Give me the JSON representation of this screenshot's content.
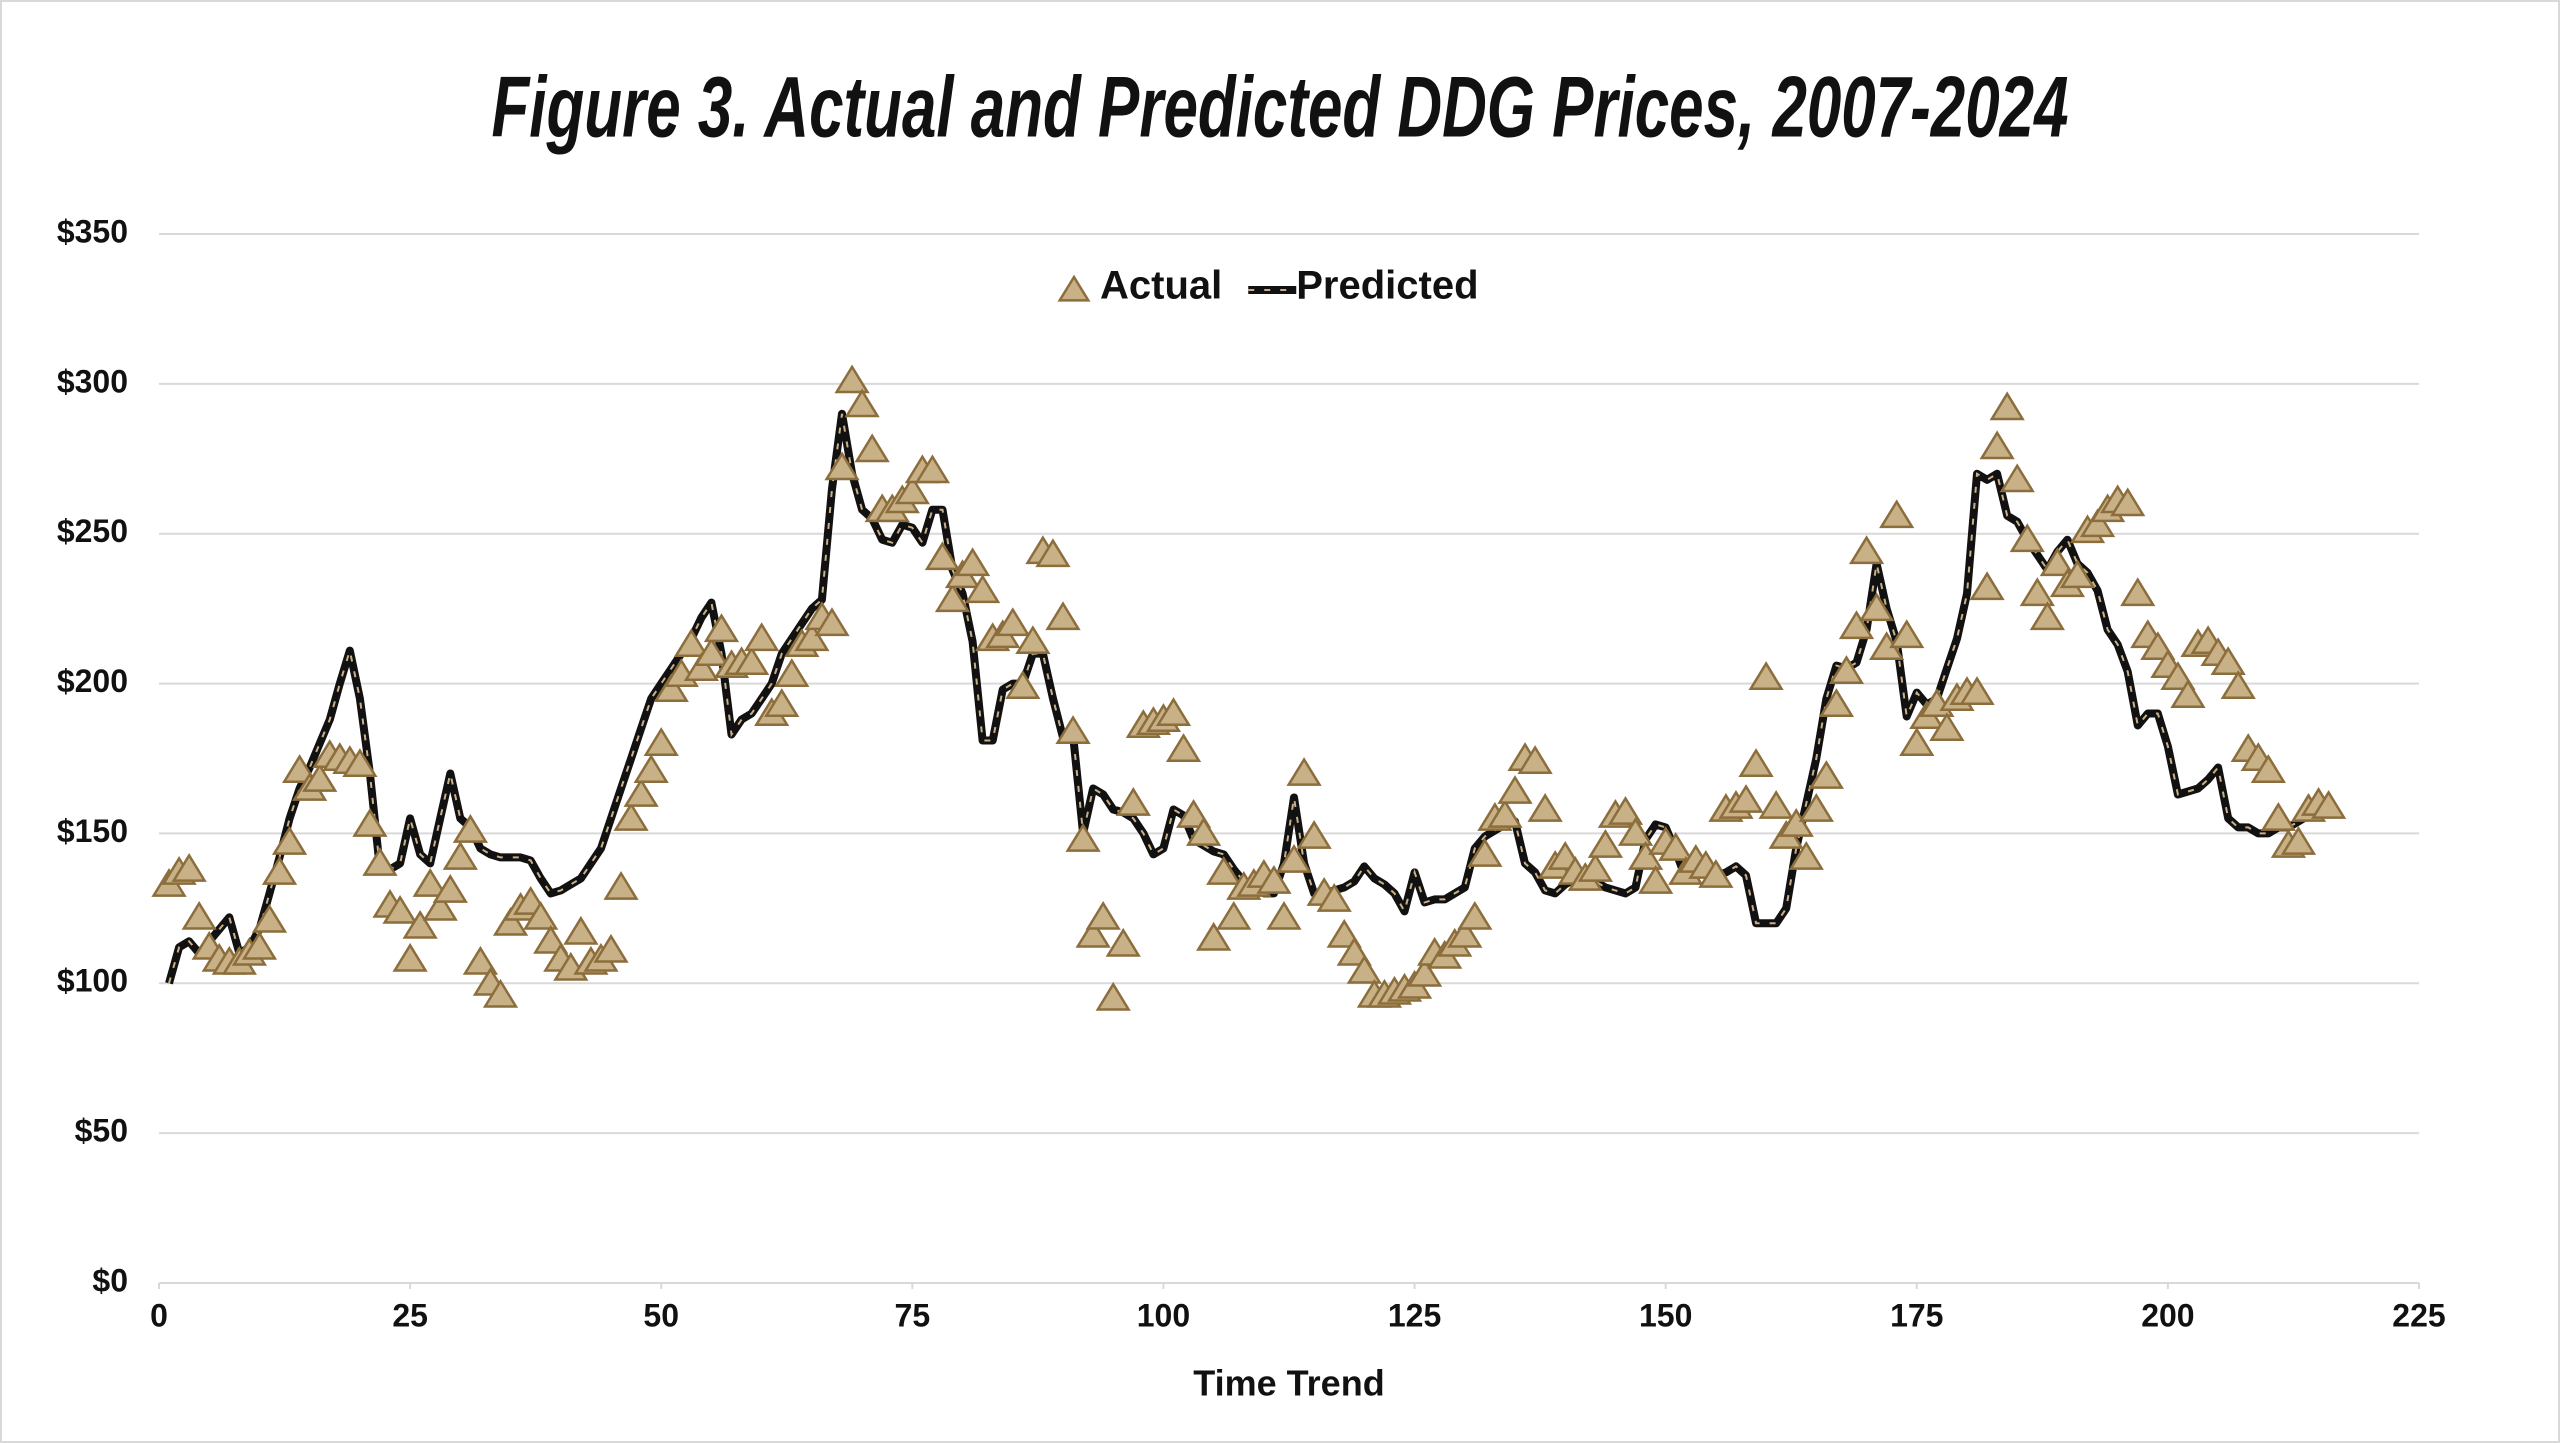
{
  "chart_data": {
    "type": "line",
    "title": "Figure 3. Actual and Predicted DDG Prices, 2007-2024",
    "x_label": "Time Trend",
    "xlim": [
      0,
      225
    ],
    "xticks": [
      0,
      25,
      50,
      75,
      100,
      125,
      150,
      175,
      200,
      225
    ],
    "ylim": [
      0,
      350
    ],
    "yticks": [
      {
        "value": 0,
        "label": "$0"
      },
      {
        "value": 50,
        "label": "$50"
      },
      {
        "value": 100,
        "label": "$100"
      },
      {
        "value": 150,
        "label": "$150"
      },
      {
        "value": 200,
        "label": "$200"
      },
      {
        "value": 250,
        "label": "$250"
      },
      {
        "value": 300,
        "label": "$300"
      },
      {
        "value": 350,
        "label": "$350"
      }
    ],
    "grid": true,
    "legend": "top",
    "x": [
      1,
      2,
      3,
      4,
      5,
      6,
      7,
      8,
      9,
      10,
      11,
      12,
      13,
      14,
      15,
      16,
      17,
      18,
      19,
      20,
      21,
      22,
      23,
      24,
      25,
      26,
      27,
      28,
      29,
      30,
      31,
      32,
      33,
      34,
      35,
      36,
      37,
      38,
      39,
      40,
      41,
      42,
      43,
      44,
      45,
      46,
      47,
      48,
      49,
      50,
      51,
      52,
      53,
      54,
      55,
      56,
      57,
      58,
      59,
      60,
      61,
      62,
      63,
      64,
      65,
      66,
      67,
      68,
      69,
      70,
      71,
      72,
      73,
      74,
      75,
      76,
      77,
      78,
      79,
      80,
      81,
      82,
      83,
      84,
      85,
      86,
      87,
      88,
      89,
      90,
      91,
      92,
      93,
      94,
      95,
      96,
      97,
      98,
      99,
      100,
      101,
      102,
      103,
      104,
      105,
      106,
      107,
      108,
      109,
      110,
      111,
      112,
      113,
      114,
      115,
      116,
      117,
      118,
      119,
      120,
      121,
      122,
      123,
      124,
      125,
      126,
      127,
      128,
      129,
      130,
      131,
      132,
      133,
      134,
      135,
      136,
      137,
      138,
      139,
      140,
      141,
      142,
      143,
      144,
      145,
      146,
      147,
      148,
      149,
      150,
      151,
      152,
      153,
      154,
      155,
      156,
      157,
      158,
      159,
      160,
      161,
      162,
      163,
      164,
      165,
      166,
      167,
      168,
      169,
      170,
      171,
      172,
      173,
      174,
      175,
      176,
      177,
      178,
      179,
      180,
      181,
      182,
      183,
      184,
      185,
      186,
      187,
      188,
      189,
      190,
      191,
      192,
      193,
      194,
      195,
      196,
      197,
      198,
      199,
      200,
      201,
      202,
      203,
      204,
      205,
      206,
      207,
      208,
      209,
      210,
      211,
      212,
      213,
      214,
      215,
      216
    ],
    "series": [
      {
        "name": "Actual",
        "style": "markers",
        "color": "#c9b187",
        "values": [
          133,
          137,
          138,
          122,
          112,
          108,
          107,
          107,
          110,
          112,
          121,
          137,
          147,
          171,
          165,
          168,
          176,
          175,
          174,
          173,
          153,
          140,
          126,
          124,
          108,
          119,
          133,
          125,
          131,
          142,
          151,
          107,
          100,
          96,
          120,
          125,
          127,
          122,
          114,
          108,
          105,
          117,
          107,
          108,
          111,
          132,
          155,
          163,
          171,
          180,
          198,
          203,
          213,
          205,
          210,
          218,
          206,
          207,
          207,
          215,
          190,
          193,
          203,
          213,
          215,
          222,
          220,
          272,
          301,
          293,
          278,
          258,
          258,
          261,
          264,
          271,
          271,
          242,
          228,
          236,
          240,
          231,
          215,
          216,
          220,
          199,
          214,
          244,
          243,
          222,
          184,
          148,
          116,
          122,
          95,
          113,
          160,
          186,
          187,
          188,
          190,
          178,
          156,
          150,
          115,
          137,
          122,
          132,
          133,
          136,
          134,
          122,
          141,
          170,
          149,
          130,
          128,
          116,
          110,
          104,
          96,
          96,
          97,
          98,
          99,
          103,
          110,
          109,
          113,
          116,
          122,
          143,
          155,
          156,
          164,
          175,
          174,
          158,
          139,
          142,
          137,
          135,
          138,
          146,
          156,
          157,
          150,
          142,
          134,
          147,
          145,
          137,
          141,
          139,
          136,
          158,
          159,
          161,
          173,
          202,
          159,
          149,
          153,
          142,
          158,
          169,
          193,
          204,
          219,
          244,
          225,
          212,
          256,
          216,
          180,
          189,
          193,
          185,
          195,
          197,
          197,
          232,
          279,
          292,
          268,
          248,
          230,
          222,
          240,
          233,
          236,
          251,
          253,
          258,
          261,
          260,
          230,
          216,
          212,
          206,
          202,
          196,
          213,
          214,
          210,
          207,
          199,
          178,
          175,
          171,
          155,
          146,
          147,
          158,
          160,
          159
        ]
      },
      {
        "name": "Predicted",
        "style": "line",
        "color": "#111111",
        "values": [
          100,
          112,
          114,
          110,
          114,
          118,
          122,
          110,
          112,
          118,
          130,
          142,
          155,
          165,
          172,
          180,
          188,
          200,
          211,
          195,
          170,
          138,
          138,
          140,
          155,
          143,
          140,
          155,
          170,
          155,
          152,
          145,
          143,
          142,
          142,
          142,
          141,
          135,
          130,
          131,
          133,
          135,
          140,
          145,
          155,
          165,
          175,
          185,
          195,
          200,
          205,
          210,
          215,
          222,
          227,
          210,
          183,
          188,
          190,
          195,
          200,
          210,
          215,
          220,
          225,
          228,
          265,
          290,
          270,
          258,
          255,
          248,
          247,
          253,
          252,
          247,
          258,
          258,
          238,
          230,
          214,
          181,
          181,
          198,
          200,
          200,
          210,
          210,
          195,
          182,
          183,
          150,
          165,
          163,
          158,
          157,
          155,
          150,
          143,
          145,
          158,
          156,
          148,
          146,
          144,
          143,
          138,
          134,
          133,
          130,
          130,
          140,
          162,
          140,
          130,
          130,
          131,
          132,
          134,
          139,
          135,
          133,
          130,
          124,
          137,
          127,
          128,
          128,
          130,
          132,
          145,
          149,
          151,
          153,
          154,
          140,
          137,
          131,
          130,
          133,
          135,
          133,
          134,
          132,
          131,
          130,
          132,
          148,
          153,
          152,
          144,
          135,
          136,
          137,
          136,
          137,
          139,
          136,
          120,
          120,
          120,
          125,
          145,
          160,
          175,
          195,
          206,
          205,
          207,
          218,
          240,
          225,
          214,
          189,
          197,
          193,
          195,
          205,
          215,
          230,
          270,
          268,
          270,
          256,
          254,
          248,
          243,
          238,
          244,
          248,
          240,
          237,
          231,
          218,
          213,
          204,
          186,
          190,
          190,
          179,
          163,
          164,
          165,
          168,
          172,
          155,
          152,
          152,
          150,
          150,
          152,
          152,
          154,
          156,
          157,
          158
        ]
      }
    ]
  }
}
